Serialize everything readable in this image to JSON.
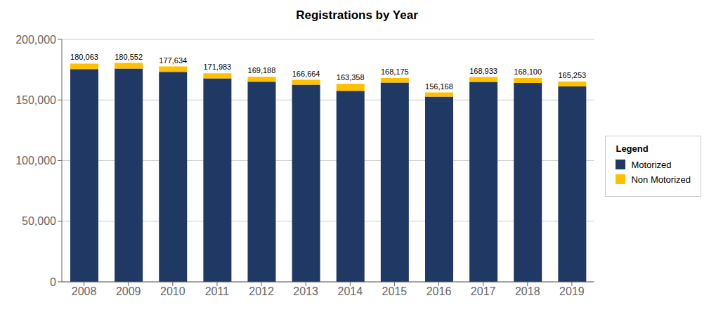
{
  "chart_data": {
    "type": "bar",
    "title": "Registrations by Year",
    "categories": [
      "2008",
      "2009",
      "2010",
      "2011",
      "2012",
      "2013",
      "2014",
      "2015",
      "2016",
      "2017",
      "2018",
      "2019"
    ],
    "series": [
      {
        "name": "Motorized",
        "color": "#1F3864",
        "values": [
          175500,
          176000,
          173200,
          167800,
          165100,
          162600,
          157500,
          164300,
          152700,
          164900,
          164100,
          161200
        ]
      },
      {
        "name": "Non Motorized",
        "color": "#FFC000",
        "values": [
          4563,
          4552,
          4434,
          4183,
          4088,
          4064,
          5858,
          3875,
          3468,
          4033,
          4000,
          4053
        ]
      }
    ],
    "stacked": true,
    "totals": [
      180063,
      180552,
      177634,
      171983,
      169188,
      166664,
      163358,
      168175,
      156168,
      168933,
      168100,
      165253
    ],
    "total_labels": [
      "180,063",
      "180,552",
      "177,634",
      "171,983",
      "169,188",
      "166,664",
      "163,358",
      "168,175",
      "156,168",
      "168,933",
      "168,100",
      "165,253"
    ],
    "ylim": [
      0,
      200000
    ],
    "yticks": [
      0,
      {
        "value": 50000,
        "label": "50,000"
      },
      {
        "value": 100000,
        "label": "100,000"
      },
      {
        "value": 150000,
        "label": "150,000"
      },
      {
        "value": 200000,
        "label": "200,000"
      }
    ],
    "grid": true,
    "legend": "right",
    "legend_title": "Legend"
  }
}
